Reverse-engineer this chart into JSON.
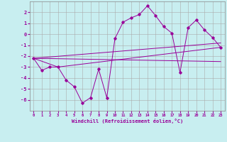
{
  "xlabel": "Windchill (Refroidissement éolien,°C)",
  "bg_color": "#c8eef0",
  "grid_color": "#aaaaaa",
  "line_color": "#990099",
  "marker": "D",
  "xlim": [
    -0.5,
    23.5
  ],
  "ylim": [
    -7,
    3
  ],
  "xticks": [
    0,
    1,
    2,
    3,
    4,
    5,
    6,
    7,
    8,
    9,
    10,
    11,
    12,
    13,
    14,
    15,
    16,
    17,
    18,
    19,
    20,
    21,
    22,
    23
  ],
  "yticks": [
    -6,
    -5,
    -4,
    -3,
    -2,
    -1,
    0,
    1,
    2
  ],
  "series1": {
    "x": [
      0,
      1,
      2,
      3,
      4,
      5,
      6,
      7,
      8,
      9,
      10,
      11,
      12,
      13,
      14,
      15,
      16,
      17,
      18,
      19,
      20,
      21,
      22,
      23
    ],
    "y": [
      -2.2,
      -3.3,
      -3.0,
      -3.0,
      -4.2,
      -4.8,
      -6.3,
      -5.8,
      -3.2,
      -5.8,
      -0.4,
      1.1,
      1.5,
      1.8,
      2.6,
      1.7,
      0.7,
      0.1,
      -3.5,
      0.6,
      1.3,
      0.4,
      -0.3,
      -1.2
    ]
  },
  "series2": {
    "x": [
      0,
      3,
      23
    ],
    "y": [
      -2.2,
      -3.0,
      -1.2
    ]
  },
  "series3": {
    "x": [
      0,
      23
    ],
    "y": [
      -2.2,
      -0.8
    ]
  },
  "series4": {
    "x": [
      0,
      23
    ],
    "y": [
      -2.2,
      -2.5
    ]
  }
}
